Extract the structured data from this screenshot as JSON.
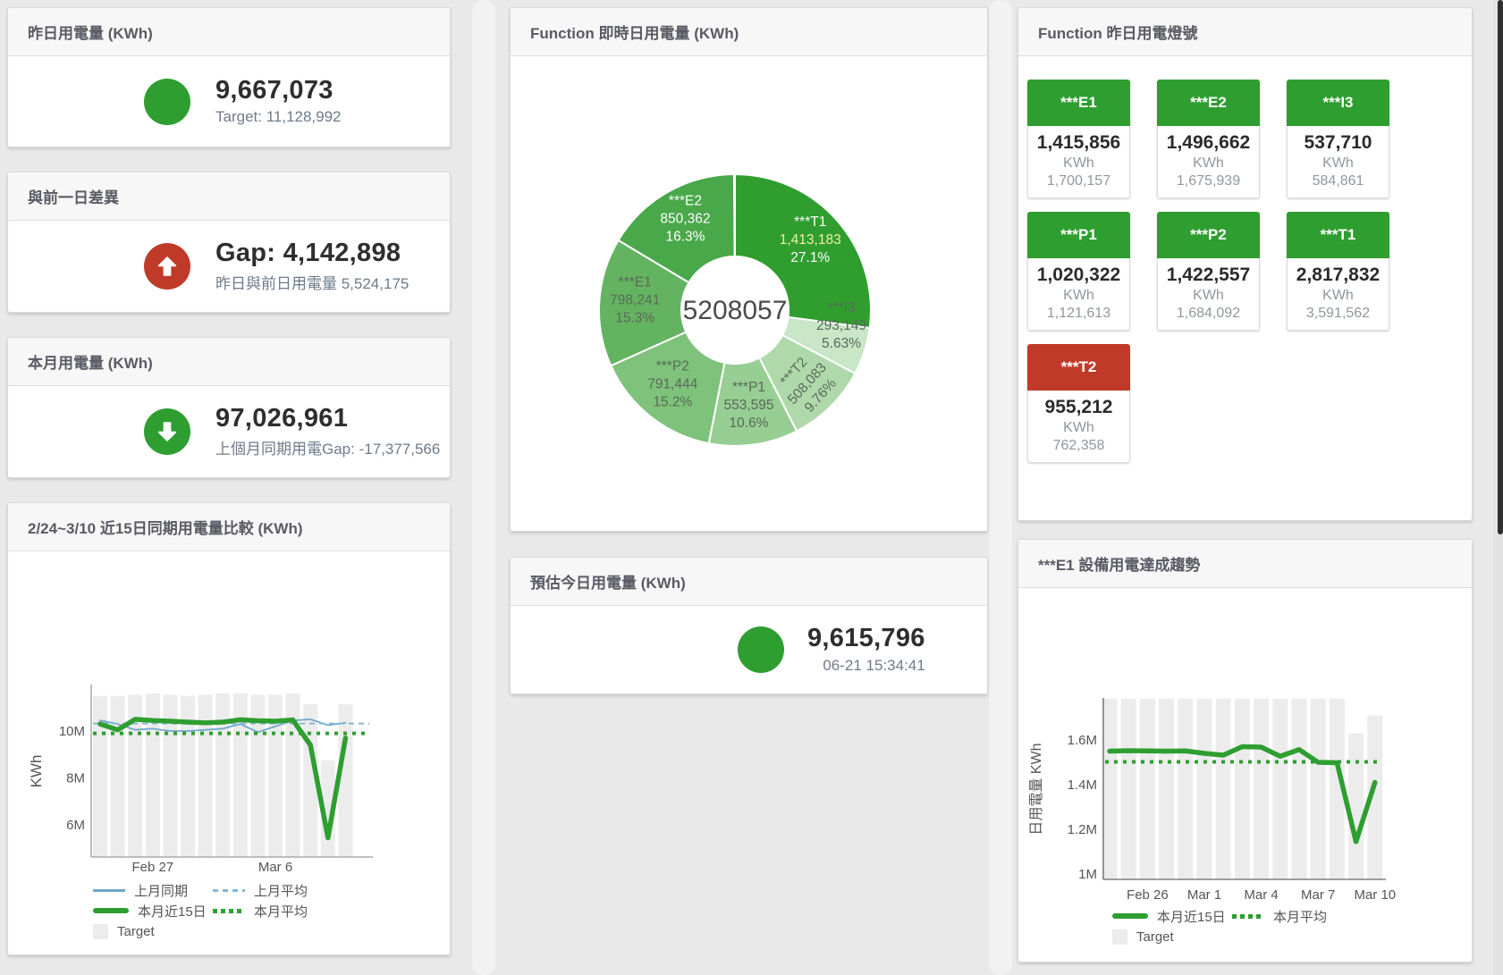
{
  "colors": {
    "green": "#2e9e30",
    "red": "#c03a2a",
    "blue": "#6fa8cc",
    "blue_dashed": "#85b8d8",
    "bar_fill": "#ececec",
    "value_text": "#2e2e2e",
    "muted_text": "#6e7b8a",
    "title_text": "#5a5a64",
    "tick_text": "#555555",
    "donut_center_text": "#4a4a4a"
  },
  "panels": {
    "yesterday": {
      "title": "昨日用電量 (KWh)",
      "value": "9,667,073",
      "subtitle": "Target: 11,128,992",
      "status": "green"
    },
    "gap": {
      "title": "與前一日差異",
      "value": "Gap: 4,142,898",
      "subtitle": "昨日與前日用電量 5,524,175",
      "status": "red",
      "arrow": "up"
    },
    "month": {
      "title": "本月用電量 (KWh)",
      "value": "97,026,961",
      "subtitle": "上個月同期用電Gap: -17,377,566",
      "status": "green",
      "arrow": "down"
    },
    "estimate": {
      "title": "預估今日用電量 (KWh)",
      "value": "9,615,796",
      "timestamp": "06-21 15:34:41",
      "status": "green"
    },
    "lights": {
      "title": "Function 昨日用電燈號",
      "tiles": [
        {
          "name": "***E1",
          "value": "1,415,856",
          "unit": "KWh",
          "target": "1,700,157",
          "status": "green"
        },
        {
          "name": "***E2",
          "value": "1,496,662",
          "unit": "KWh",
          "target": "1,675,939",
          "status": "green"
        },
        {
          "name": "***I3",
          "value": "537,710",
          "unit": "KWh",
          "target": "584,861",
          "status": "green"
        },
        {
          "name": "***P1",
          "value": "1,020,322",
          "unit": "KWh",
          "target": "1,121,613",
          "status": "green"
        },
        {
          "name": "***P2",
          "value": "1,422,557",
          "unit": "KWh",
          "target": "1,684,092",
          "status": "green"
        },
        {
          "name": "***T1",
          "value": "2,817,832",
          "unit": "KWh",
          "target": "3,591,562",
          "status": "green"
        },
        {
          "name": "***T2",
          "value": "955,212",
          "unit": "KWh",
          "target": "762,358",
          "status": "red"
        }
      ]
    }
  },
  "chart_data": [
    {
      "type": "pie",
      "title": "Function 即時日用電量 (KWh)",
      "center_total": "5208057",
      "unit": "KWh",
      "slices": [
        {
          "name": "***T1",
          "value": 1413183,
          "value_text": "1,413,183",
          "pct": "27.1%",
          "frac": 0.271,
          "color": "#2f9e2f",
          "text": "#ffffff",
          "value_color": "#f3ee9e"
        },
        {
          "name": "***I3",
          "value": 293149,
          "value_text": "293,149",
          "pct": "5.63%",
          "frac": 0.0563,
          "color": "#c9e6c6",
          "text": "#5a695a"
        },
        {
          "name": "***T2",
          "value": 508083,
          "value_text": "508,083",
          "pct": "9.76%",
          "frac": 0.0976,
          "color": "#afd9ab",
          "text": "#5a695a"
        },
        {
          "name": "***P1",
          "value": 553595,
          "value_text": "553,595",
          "pct": "10.6%",
          "frac": 0.106,
          "color": "#97ce93",
          "text": "#5a695a"
        },
        {
          "name": "***P2",
          "value": 791444,
          "value_text": "791,444",
          "pct": "15.2%",
          "frac": 0.152,
          "color": "#7ec27b",
          "text": "#5a695a"
        },
        {
          "name": "***E1",
          "value": 798241,
          "value_text": "798,241",
          "pct": "15.3%",
          "frac": 0.153,
          "color": "#64b361",
          "text": "#5a695a"
        },
        {
          "name": "***E2",
          "value": 850362,
          "value_text": "850,362",
          "pct": "16.3%",
          "frac": 0.163,
          "color": "#49a849",
          "text": "#ffffff"
        }
      ]
    },
    {
      "type": "line",
      "title": "2/24~3/10 近15日同期用電量比較 (KWh)",
      "ylabel": "KWh",
      "unit": "M KWh",
      "dates": [
        "2/24",
        "2/25",
        "2/26",
        "2/27",
        "2/28",
        "3/1",
        "3/2",
        "3/3",
        "3/4",
        "3/5",
        "3/6",
        "3/7",
        "3/8",
        "3/9",
        "3/10"
      ],
      "xticks": [
        {
          "label": "Feb 27",
          "point": 4
        },
        {
          "label": "Mar 6",
          "point": 11
        }
      ],
      "yticks": [
        {
          "label": "10M",
          "value": 10
        },
        {
          "label": "8M",
          "value": 8
        },
        {
          "label": "6M",
          "value": 6
        }
      ],
      "ylim": [
        4.63,
        11.98
      ],
      "series": [
        {
          "name": "Target",
          "kind": "bar",
          "color": "#ececec",
          "values": [
            11.5,
            11.5,
            11.55,
            11.6,
            11.55,
            11.5,
            11.55,
            11.6,
            11.6,
            11.55,
            11.55,
            11.6,
            11.15,
            8.75,
            11.15
          ]
        },
        {
          "name": "上月同期",
          "kind": "line",
          "color": "#6fa8cc",
          "width": 1.8,
          "values": [
            10.45,
            10.3,
            10.05,
            10.1,
            10.0,
            10.0,
            10.05,
            10.1,
            10.3,
            9.95,
            10.2,
            10.45,
            10.5,
            10.25,
            10.35
          ]
        },
        {
          "name": "上月平均",
          "kind": "dash",
          "color": "#85b8d8",
          "width": 2,
          "value": 10.32
        },
        {
          "name": "本月平均",
          "kind": "dots",
          "color": "#2e9e30",
          "width": 4,
          "value": 9.9
        },
        {
          "name": "本月近15日",
          "kind": "thick",
          "color": "#2e9e30",
          "width": 5.5,
          "values": [
            10.3,
            10.05,
            10.5,
            10.45,
            10.42,
            10.38,
            10.35,
            10.38,
            10.48,
            10.44,
            10.42,
            10.47,
            9.4,
            5.45,
            9.7
          ]
        }
      ],
      "legend": [
        [
          {
            "swatch": "line-blue",
            "label": "上月同期"
          },
          {
            "swatch": "dash-blue",
            "label": "上月平均"
          }
        ],
        [
          {
            "swatch": "thick-green",
            "label": "本月近15日"
          },
          {
            "swatch": "dots-green",
            "label": "本月平均"
          }
        ],
        [
          {
            "swatch": "bar",
            "label": "Target"
          }
        ]
      ]
    },
    {
      "type": "line",
      "title": "***E1 設備用電達成趨勢",
      "ylabel": "日用電量 KWh",
      "unit": "M KWh",
      "dates": [
        "2/24",
        "2/25",
        "2/26",
        "2/27",
        "2/28",
        "3/1",
        "3/2",
        "3/3",
        "3/4",
        "3/5",
        "3/6",
        "3/7",
        "3/8",
        "3/9",
        "3/10"
      ],
      "xticks": [
        {
          "label": "Feb 26",
          "point": 3
        },
        {
          "label": "Mar 1",
          "point": 6
        },
        {
          "label": "Mar 4",
          "point": 9
        },
        {
          "label": "Mar 7",
          "point": 12
        },
        {
          "label": "Mar 10",
          "point": 15
        }
      ],
      "yticks": [
        {
          "label": "1.6M",
          "value": 1.6
        },
        {
          "label": "1.4M",
          "value": 1.4
        },
        {
          "label": "1.2M",
          "value": 1.2
        },
        {
          "label": "1M",
          "value": 1.0
        }
      ],
      "ylim": [
        0.976,
        1.788
      ],
      "series": [
        {
          "name": "Target",
          "kind": "bar",
          "color": "#ececec",
          "values": [
            1.785,
            1.785,
            1.785,
            1.785,
            1.785,
            1.785,
            1.785,
            1.785,
            1.785,
            1.785,
            1.785,
            1.785,
            1.785,
            1.63,
            1.71
          ]
        },
        {
          "name": "本月平均",
          "kind": "dots",
          "color": "#2e9e30",
          "width": 4,
          "value": 1.502
        },
        {
          "name": "本月近15日",
          "kind": "thick",
          "color": "#2e9e30",
          "width": 5.5,
          "values": [
            1.55,
            1.552,
            1.551,
            1.55,
            1.551,
            1.54,
            1.532,
            1.57,
            1.568,
            1.527,
            1.557,
            1.5,
            1.498,
            1.145,
            1.41
          ]
        }
      ],
      "legend": [
        [
          {
            "swatch": "thick-green",
            "label": "本月近15日"
          },
          {
            "swatch": "dots-green",
            "label": "本月平均"
          }
        ],
        [
          {
            "swatch": "bar",
            "label": "Target"
          }
        ]
      ]
    }
  ]
}
